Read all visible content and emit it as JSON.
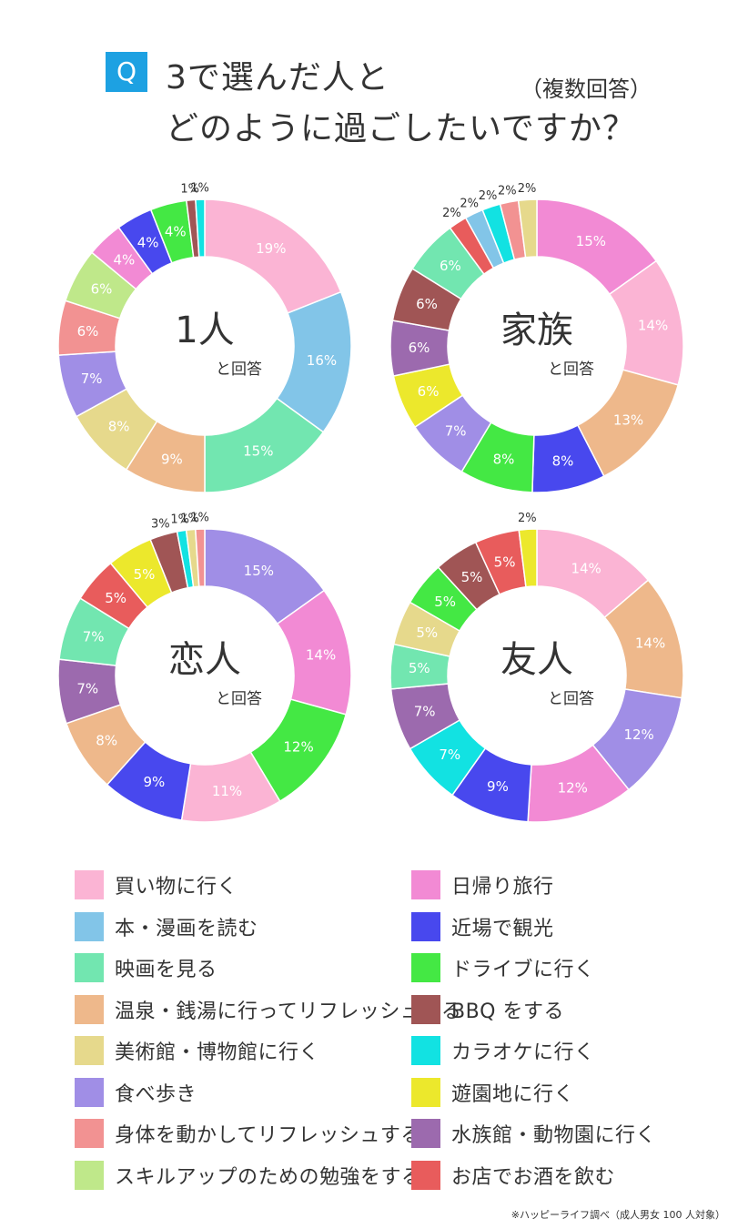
{
  "header": {
    "q": "Q",
    "title_line1": "3で選んだ人と",
    "title_line2": "どのように過ごしたいですか？",
    "subtitle": "（複数回答）"
  },
  "colors": {
    "shopping": "#fbb4d4",
    "books_manga": "#82c5e8",
    "movies": "#72e6b0",
    "onsen": "#eeb88b",
    "museum": "#e6d98c",
    "food_walk": "#a08ee6",
    "exercise": "#f29292",
    "skill_up": "#bfe88a",
    "day_trip": "#f28ad4",
    "nearby_sightseeing": "#4848ee",
    "drive": "#44e844",
    "bbq": "#a05555",
    "karaoke": "#12e2e2",
    "amusement_park": "#ece82c",
    "aquarium_zoo": "#9c6aae",
    "bar": "#e85c5c"
  },
  "legend": [
    {
      "key": "shopping",
      "label": "買い物に行く"
    },
    {
      "key": "books_manga",
      "label": "本・漫画を読む"
    },
    {
      "key": "movies",
      "label": "映画を見る"
    },
    {
      "key": "onsen",
      "label": "温泉・銭湯に行ってリフレッシュする"
    },
    {
      "key": "museum",
      "label": "美術館・博物館に行く"
    },
    {
      "key": "food_walk",
      "label": "食べ歩き"
    },
    {
      "key": "exercise",
      "label": "身体を動かしてリフレッシュする"
    },
    {
      "key": "skill_up",
      "label": "スキルアップのための勉強をする"
    },
    {
      "key": "day_trip",
      "label": "日帰り旅行"
    },
    {
      "key": "nearby_sightseeing",
      "label": "近場で観光"
    },
    {
      "key": "drive",
      "label": "ドライブに行く"
    },
    {
      "key": "bbq",
      "label": "BBQ をする"
    },
    {
      "key": "karaoke",
      "label": "カラオケに行く"
    },
    {
      "key": "amusement_park",
      "label": "遊園地に行く"
    },
    {
      "key": "aquarium_zoo",
      "label": "水族館・動物園に行く"
    },
    {
      "key": "bar",
      "label": "お店でお酒を飲む"
    }
  ],
  "chart_data": [
    {
      "type": "pie",
      "title": "1人",
      "subtitle": "と回答",
      "unit": "%",
      "slices": [
        {
          "key": "shopping",
          "value": 19
        },
        {
          "key": "books_manga",
          "value": 16
        },
        {
          "key": "movies",
          "value": 15
        },
        {
          "key": "onsen",
          "value": 9
        },
        {
          "key": "museum",
          "value": 8
        },
        {
          "key": "food_walk",
          "value": 7
        },
        {
          "key": "exercise",
          "value": 6
        },
        {
          "key": "skill_up",
          "value": 6
        },
        {
          "key": "day_trip",
          "value": 4
        },
        {
          "key": "nearby_sightseeing",
          "value": 4
        },
        {
          "key": "drive",
          "value": 4
        },
        {
          "key": "bbq",
          "value": 1
        },
        {
          "key": "karaoke",
          "value": 1
        }
      ]
    },
    {
      "type": "pie",
      "title": "家族",
      "subtitle": "と回答",
      "unit": "%",
      "slices": [
        {
          "key": "day_trip",
          "value": 15
        },
        {
          "key": "shopping",
          "value": 14
        },
        {
          "key": "onsen",
          "value": 13
        },
        {
          "key": "nearby_sightseeing",
          "value": 8
        },
        {
          "key": "drive",
          "value": 8
        },
        {
          "key": "food_walk",
          "value": 7
        },
        {
          "key": "amusement_park",
          "value": 6
        },
        {
          "key": "aquarium_zoo",
          "value": 6
        },
        {
          "key": "bbq",
          "value": 6
        },
        {
          "key": "movies",
          "value": 6
        },
        {
          "key": "bar",
          "value": 2
        },
        {
          "key": "books_manga",
          "value": 2
        },
        {
          "key": "karaoke",
          "value": 2
        },
        {
          "key": "exercise",
          "value": 2
        },
        {
          "key": "museum",
          "value": 2
        }
      ]
    },
    {
      "type": "pie",
      "title": "恋人",
      "subtitle": "と回答",
      "unit": "%",
      "slices": [
        {
          "key": "food_walk",
          "value": 15
        },
        {
          "key": "day_trip",
          "value": 14
        },
        {
          "key": "drive",
          "value": 12
        },
        {
          "key": "shopping",
          "value": 11
        },
        {
          "key": "nearby_sightseeing",
          "value": 9
        },
        {
          "key": "onsen",
          "value": 8
        },
        {
          "key": "aquarium_zoo",
          "value": 7
        },
        {
          "key": "movies",
          "value": 7
        },
        {
          "key": "bar",
          "value": 5
        },
        {
          "key": "amusement_park",
          "value": 5
        },
        {
          "key": "bbq",
          "value": 3
        },
        {
          "key": "karaoke",
          "value": 1
        },
        {
          "key": "museum",
          "value": 1
        },
        {
          "key": "exercise",
          "value": 1
        }
      ]
    },
    {
      "type": "pie",
      "title": "友人",
      "subtitle": "と回答",
      "unit": "%",
      "slices": [
        {
          "key": "shopping",
          "value": 14
        },
        {
          "key": "onsen",
          "value": 14
        },
        {
          "key": "food_walk",
          "value": 12
        },
        {
          "key": "day_trip",
          "value": 12
        },
        {
          "key": "nearby_sightseeing",
          "value": 9
        },
        {
          "key": "karaoke",
          "value": 7
        },
        {
          "key": "aquarium_zoo",
          "value": 7
        },
        {
          "key": "movies",
          "value": 5
        },
        {
          "key": "museum",
          "value": 5
        },
        {
          "key": "drive",
          "value": 5
        },
        {
          "key": "bbq",
          "value": 5
        },
        {
          "key": "bar",
          "value": 5
        },
        {
          "key": "amusement_park",
          "value": 2
        }
      ]
    }
  ],
  "footnote": "※ハッピーライフ調べ（成人男女 100 人対象）"
}
